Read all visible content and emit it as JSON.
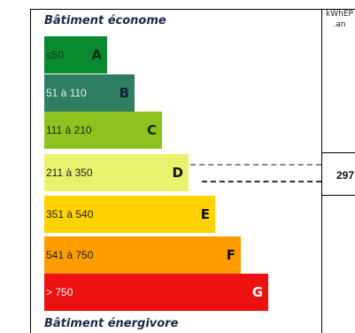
{
  "labels": {
    "top": "Bâtiment économe",
    "bottom": "Bâtiment énergivore",
    "unit_line1": "kWhEP",
    "unit_line2": ".an"
  },
  "classes": [
    {
      "letter": "A",
      "range": "≤50",
      "color": "#0a8a2f"
    },
    {
      "letter": "B",
      "range": "51 à 110",
      "color": "#2f7e63"
    },
    {
      "letter": "C",
      "range": "111 à 210",
      "color": "#8ec21f"
    },
    {
      "letter": "D",
      "range": "211 à 350",
      "color": "#e9f26c"
    },
    {
      "letter": "E",
      "range": "351 à 540",
      "color": "#ffd200"
    },
    {
      "letter": "F",
      "range": "541 à 750",
      "color": "#ff9d00"
    },
    {
      "letter": "G",
      "range": "> 750",
      "color": "#ee1111"
    }
  ],
  "current": {
    "value": "297",
    "class": "D"
  }
}
